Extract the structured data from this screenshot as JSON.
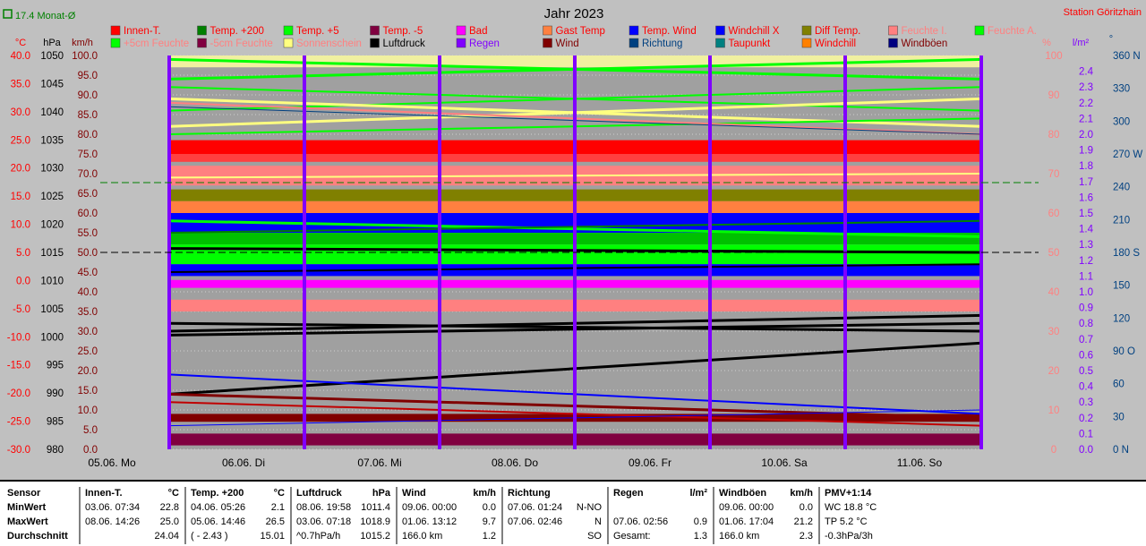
{
  "header": {
    "title": "Jahr 2023",
    "station": "Station Göritzhain",
    "avg_label": "17.4 Monat-Ø"
  },
  "axes": {
    "left_units": [
      "°C",
      "hPa",
      "km/h"
    ],
    "right_units": [
      "%",
      "l/m²",
      "°"
    ]
  },
  "legend": [
    {
      "label": "Innen-T.",
      "color": "#ff0000",
      "text_color": "#ff0000"
    },
    {
      "label": "Temp. +200",
      "color": "#008000",
      "text_color": "#ff0000"
    },
    {
      "label": "Temp. +5",
      "color": "#00ff00",
      "text_color": "#ff0000"
    },
    {
      "label": "Temp. -5",
      "color": "#800040",
      "text_color": "#ff0000"
    },
    {
      "label": "Bad",
      "color": "#ff00ff",
      "text_color": "#ff0000"
    },
    {
      "label": "Gast Temp",
      "color": "#ff8040",
      "text_color": "#ff0000"
    },
    {
      "label": "Temp. Wind",
      "color": "#0000ff",
      "text_color": "#ff0000"
    },
    {
      "label": "Windchill X",
      "color": "#0000ff",
      "text_color": "#ff0000"
    },
    {
      "label": "Diff Temp.",
      "color": "#808000",
      "text_color": "#ff0000"
    },
    {
      "label": "Feuchte I.",
      "color": "#ff8080",
      "text_color": "#ff8080"
    },
    {
      "label": "Feuchte A.",
      "color": "#00ff00",
      "text_color": "#ff8080"
    },
    {
      "label": "+5cm Feuchte",
      "color": "#00ff00",
      "text_color": "#ff8080"
    },
    {
      "label": "-5cm Feuchte",
      "color": "#800040",
      "text_color": "#ff8080"
    },
    {
      "label": "Sonnenschein",
      "color": "#ffff80",
      "text_color": "#ff8080"
    },
    {
      "label": "Luftdruck",
      "color": "#000000",
      "text_color": "#000000"
    },
    {
      "label": "Regen",
      "color": "#8000ff",
      "text_color": "#8000ff"
    },
    {
      "label": "Wind",
      "color": "#800000",
      "text_color": "#800000"
    },
    {
      "label": "Richtung",
      "color": "#004080",
      "text_color": "#004080"
    },
    {
      "label": "Taupunkt",
      "color": "#008080",
      "text_color": "#ff0000"
    },
    {
      "label": "Windchill",
      "color": "#ff8000",
      "text_color": "#ff0000"
    },
    {
      "label": "Windböen",
      "color": "#000080",
      "text_color": "#800000"
    }
  ],
  "chart_data": {
    "type": "line",
    "title": "Jahr 2023",
    "x_ticks": [
      "05.06. Mo",
      "06.06. Di",
      "07.06. Mi",
      "08.06. Do",
      "09.06. Fr",
      "10.06. Sa",
      "11.06. So"
    ],
    "axis_celsius": {
      "ticks": [
        "40.0",
        "35.0",
        "30.0",
        "25.0",
        "20.0",
        "15.0",
        "10.0",
        "5.0",
        "0.0",
        "-5.0",
        "-10.0",
        "-15.0",
        "-20.0",
        "-25.0",
        "-30.0"
      ],
      "range": [
        -30,
        40
      ]
    },
    "axis_hpa": {
      "ticks": [
        "1050",
        "1045",
        "1040",
        "1035",
        "1030",
        "1025",
        "1020",
        "1015",
        "1010",
        "1005",
        "1000",
        "995",
        "990",
        "985",
        "980"
      ],
      "range": [
        980,
        1050
      ]
    },
    "axis_kmh": {
      "ticks": [
        "100.0",
        "95.0",
        "90.0",
        "85.0",
        "80.0",
        "75.0",
        "70.0",
        "65.0",
        "60.0",
        "55.0",
        "50.0",
        "45.0",
        "40.0",
        "35.0",
        "30.0",
        "25.0",
        "20.0",
        "15.0",
        "10.0",
        "5.0",
        "0.0"
      ],
      "range": [
        0,
        100
      ]
    },
    "axis_percent": {
      "ticks": [
        "100",
        "90",
        "80",
        "70",
        "60",
        "50",
        "40",
        "30",
        "20",
        "10",
        "0"
      ],
      "range": [
        0,
        100
      ]
    },
    "axis_rain": {
      "ticks": [
        "2.4",
        "2.3",
        "2.2",
        "2.1",
        "2.0",
        "1.9",
        "1.8",
        "1.7",
        "1.6",
        "1.5",
        "1.4",
        "1.3",
        "1.2",
        "1.1",
        "1.0",
        "0.9",
        "0.8",
        "0.7",
        "0.6",
        "0.5",
        "0.4",
        "0.3",
        "0.2",
        "0.1",
        "0.0"
      ],
      "range": [
        0,
        2.5
      ]
    },
    "axis_direction": {
      "ticks": [
        "360 N",
        "330",
        "300",
        "270 W",
        "240",
        "210",
        "180 S",
        "150",
        "120",
        "90 O",
        "60",
        "30",
        "0 N"
      ],
      "range": [
        0,
        360
      ]
    },
    "reference_lines": [
      {
        "name": "monthly-average",
        "value_celsius": 17.4,
        "color": "#008000",
        "style": "dashed"
      },
      {
        "name": "zero-reference",
        "value_kmh": 50,
        "color": "#000000",
        "style": "dashed"
      }
    ],
    "grid": true
  },
  "stats": {
    "row_labels": [
      "Sensor",
      "MinWert",
      "MaxWert",
      "Durchschnitt"
    ],
    "columns": [
      {
        "name": "Innen-T.",
        "unit": "°C",
        "rows": [
          [
            "03.06.  07:34",
            "22.8"
          ],
          [
            "08.06.  14:26",
            "25.0"
          ],
          [
            "",
            "24.04"
          ]
        ]
      },
      {
        "name": "Temp. +200",
        "unit": "°C",
        "rows": [
          [
            "04.06.  05:26",
            "2.1"
          ],
          [
            "05.06.  14:46",
            "26.5"
          ],
          [
            "( - 2.43 )",
            "15.01"
          ]
        ]
      },
      {
        "name": "Luftdruck",
        "unit": "hPa",
        "rows": [
          [
            "08.06.  19:58",
            "1011.4"
          ],
          [
            "03.06.  07:18",
            "1018.9"
          ],
          [
            "^0.7hPa/h",
            "1015.2"
          ]
        ]
      },
      {
        "name": "Wind",
        "unit": "km/h",
        "rows": [
          [
            "09.06.  00:00",
            "0.0"
          ],
          [
            "01.06.  13:12",
            "9.7"
          ],
          [
            "166.0 km",
            "1.2"
          ]
        ]
      },
      {
        "name": "Richtung",
        "unit": "",
        "rows": [
          [
            "07.06.  01:24",
            "N-NO"
          ],
          [
            "07.06.  02:46",
            "N"
          ],
          [
            "",
            "SO"
          ]
        ]
      },
      {
        "name": "Regen",
        "unit": "l/m²",
        "rows": [
          [
            "",
            ""
          ],
          [
            "07.06.  02:56",
            "0.9"
          ],
          [
            "Gesamt:",
            "1.3"
          ]
        ]
      },
      {
        "name": "Windböen",
        "unit": "km/h",
        "rows": [
          [
            "09.06.  00:00",
            "0.0"
          ],
          [
            "01.06.  17:04",
            "21.2"
          ],
          [
            "166.0 km",
            "2.3"
          ]
        ]
      },
      {
        "name": "PMV+1:14",
        "unit": "",
        "rows": [
          [
            "WC 18.8 °C",
            ""
          ],
          [
            "TP 5.2 °C",
            ""
          ],
          [
            "-0.3hPa/3h",
            ""
          ]
        ]
      }
    ]
  }
}
